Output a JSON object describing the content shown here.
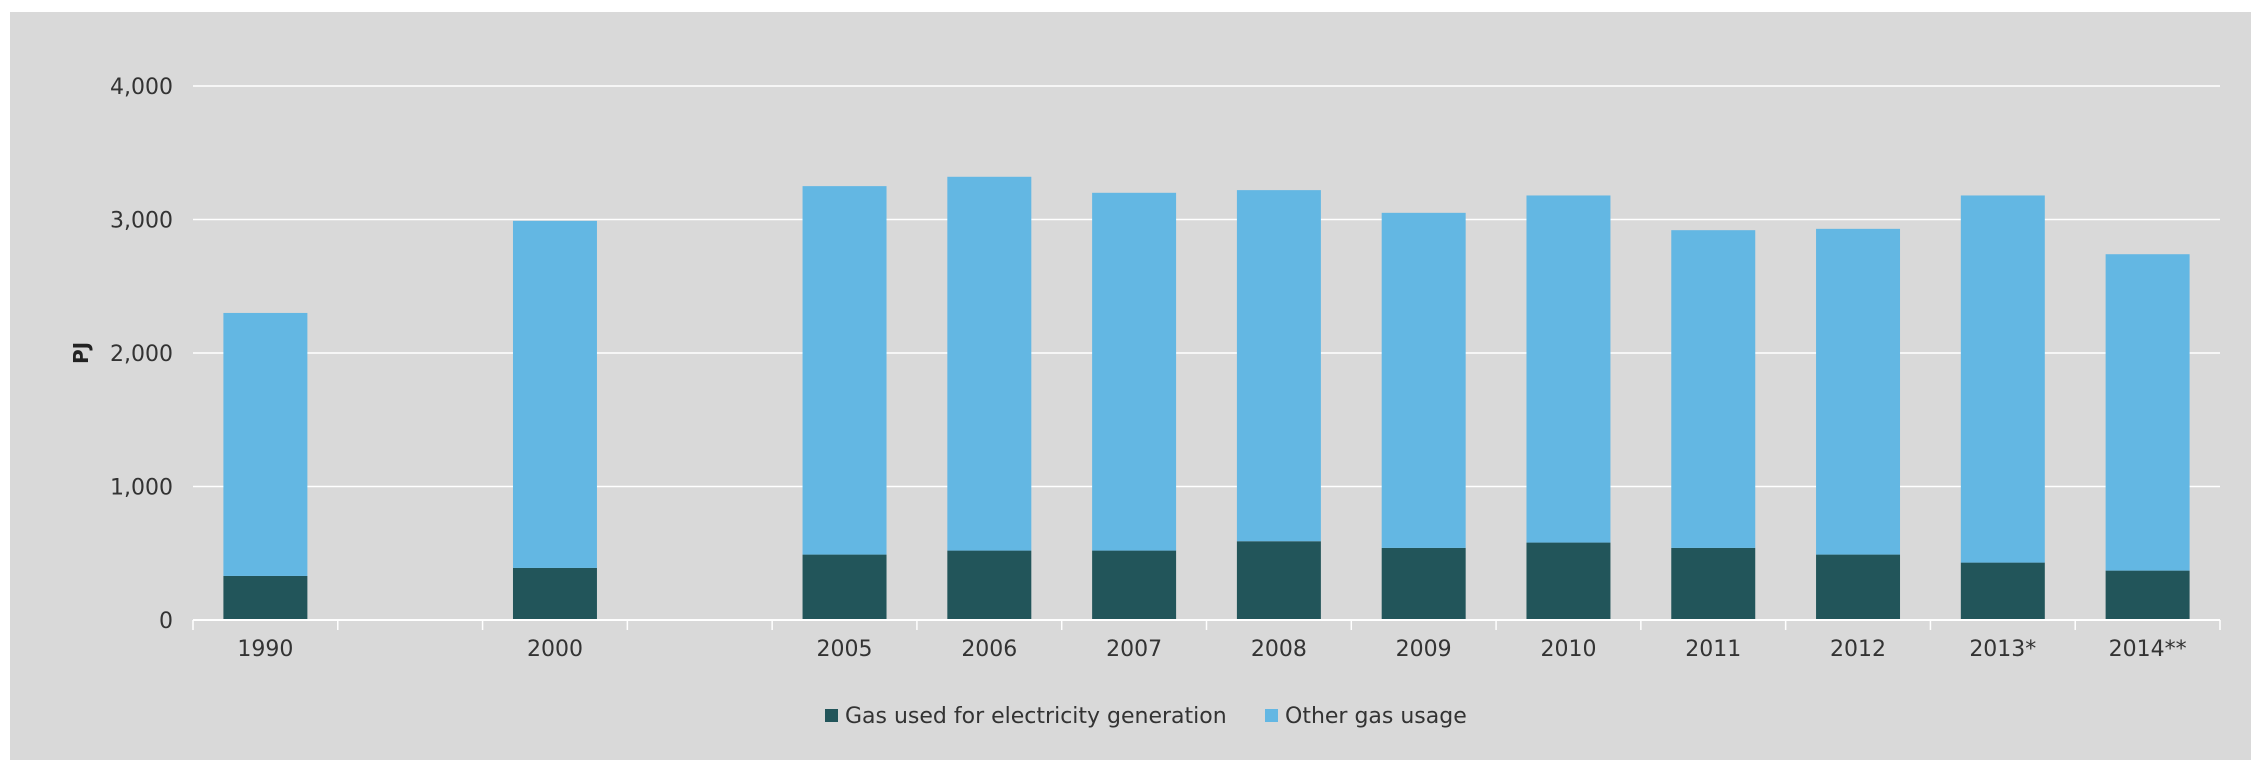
{
  "chart_data": {
    "type": "bar",
    "stacked": true,
    "categories": [
      "1990",
      "",
      "2000",
      "",
      "2005",
      "2006",
      "2007",
      "2008",
      "2009",
      "2010",
      "2011",
      "2012",
      "2013*",
      "2014**"
    ],
    "series": [
      {
        "name": "Gas used for electricity generation",
        "color": "#22555a",
        "values": [
          330,
          null,
          390,
          null,
          490,
          520,
          520,
          590,
          540,
          580,
          540,
          490,
          430,
          370
        ]
      },
      {
        "name": "Other gas usage",
        "color": "#63b7e3",
        "values": [
          1970,
          null,
          2600,
          null,
          2760,
          2800,
          2680,
          2630,
          2510,
          2600,
          2380,
          2440,
          2750,
          2370
        ]
      }
    ],
    "ylabel": "PJ",
    "xlabel": "",
    "ylim": [
      0,
      4000
    ],
    "yticks": [
      0,
      1000,
      2000,
      3000,
      4000
    ],
    "ytick_labels": [
      "0",
      "1,000",
      "2,000",
      "3,000",
      "4,000"
    ],
    "grid": true,
    "legend_position": "bottom-center",
    "background": "#d9d9d9"
  }
}
